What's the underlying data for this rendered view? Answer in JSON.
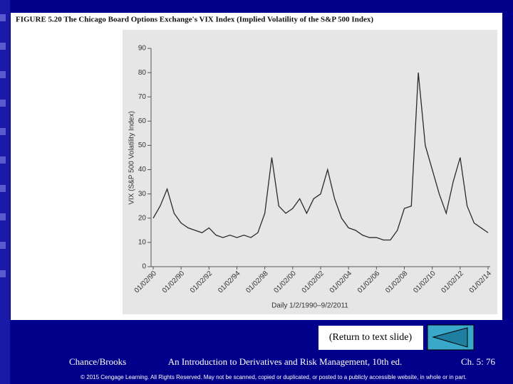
{
  "chart_data": {
    "type": "line",
    "title": "FIGURE 5.20 The Chicago Board Options Exchange's VIX Index (Implied Volatility of the S&P 500 Index)",
    "y_label": "VIX (S&P 500 Volatility Index)",
    "x_label": "Daily 1/2/1990–9/2/2011",
    "color": "#2a2a2a",
    "x": [
      0,
      0.25,
      0.5,
      0.75,
      1,
      1.25,
      1.5,
      1.75,
      2,
      2.25,
      2.5,
      2.75,
      3,
      3.25,
      3.5,
      3.75,
      4,
      4.25,
      4.5,
      4.75,
      5,
      5.25,
      5.5,
      5.75,
      6,
      6.25,
      6.5,
      6.75,
      7,
      7.25,
      7.5,
      7.75,
      8,
      8.25,
      8.5,
      8.75,
      9,
      9.25,
      9.5,
      9.75,
      10,
      10.25,
      10.5,
      10.75,
      11,
      11.25,
      11.5,
      11.75,
      12
    ],
    "values": [
      20,
      25,
      32,
      22,
      18,
      16,
      15,
      14,
      16,
      13,
      12,
      13,
      12,
      13,
      12,
      14,
      22,
      45,
      25,
      22,
      24,
      28,
      22,
      28,
      30,
      40,
      28,
      20,
      16,
      15,
      13,
      12,
      12,
      11,
      11,
      15,
      24,
      25,
      80,
      50,
      40,
      30,
      22,
      35,
      45,
      25,
      18,
      16,
      14
    ],
    "xlim": [
      0,
      12
    ],
    "xticks": [
      {
        "value": 0,
        "label": "01/02/90"
      },
      {
        "value": 1,
        "label": "01/02/90"
      },
      {
        "value": 2,
        "label": "01/02/92"
      },
      {
        "value": 3,
        "label": "01/02/94"
      },
      {
        "value": 4,
        "label": "01/02/98"
      },
      {
        "value": 5,
        "label": "01/02/00"
      },
      {
        "value": 6,
        "label": "01/02/02"
      },
      {
        "value": 7,
        "label": "01/02/04"
      },
      {
        "value": 8,
        "label": "01/02/06"
      },
      {
        "value": 9,
        "label": "01/02/08"
      },
      {
        "value": 10,
        "label": "01/02/10"
      },
      {
        "value": 11,
        "label": "01/02/12"
      },
      {
        "value": 12,
        "label": "01/02/14"
      }
    ],
    "ylim": [
      0,
      90
    ],
    "yticks": [
      0,
      10,
      20,
      30,
      40,
      50,
      60,
      70,
      80,
      90
    ]
  },
  "slide": {
    "return_link": "(Return to text slide)",
    "author": "Chance/Brooks",
    "book": "An Introduction to Derivatives and Risk Management, 10th ed.",
    "page": "Ch. 5: 76",
    "copyright": "© 2015 Cengage Learning. All Rights Reserved. May not be scanned, copied or duplicated, or posted to a publicly accessible website, in whole or in part."
  }
}
